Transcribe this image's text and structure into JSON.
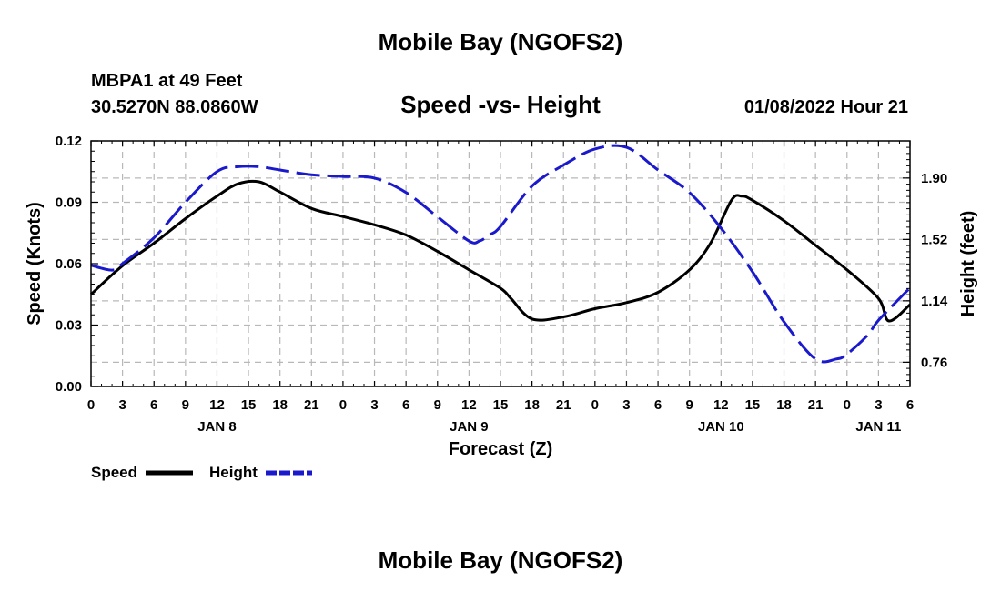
{
  "header": {
    "title": "Mobile Bay (NGOFS2)",
    "station": "MBPA1 at 49 Feet",
    "coords": "30.5270N  88.0860W",
    "subtitle": "Speed -vs- Height",
    "datetime": "01/08/2022 Hour 21"
  },
  "footer": {
    "title": "Mobile Bay (NGOFS2)"
  },
  "legend": {
    "speed": "Speed",
    "height": "Height"
  },
  "colors": {
    "speed": "#000000",
    "height": "#1a1acc"
  },
  "chart_data": {
    "type": "line",
    "title": "Speed -vs- Height",
    "xlabel": "Forecast (Z)",
    "ylabel": "Speed (Knots)",
    "y2label": "Height (feet)",
    "xlim": [
      0,
      78
    ],
    "ylim": [
      0,
      0.12
    ],
    "y2lim": [
      0.61,
      2.13
    ],
    "x_ticks": [
      0,
      3,
      6,
      9,
      12,
      15,
      18,
      21,
      24,
      27,
      30,
      33,
      36,
      39,
      42,
      45,
      48,
      51,
      54,
      57,
      60,
      63,
      66,
      69,
      72,
      75,
      78
    ],
    "x_tick_labels": [
      "0",
      "3",
      "6",
      "9",
      "12",
      "15",
      "18",
      "21",
      "0",
      "3",
      "6",
      "9",
      "12",
      "15",
      "18",
      "21",
      "0",
      "3",
      "6",
      "9",
      "12",
      "15",
      "18",
      "21",
      "0",
      "3",
      "6"
    ],
    "date_labels": [
      {
        "x": 12,
        "label": "JAN 8"
      },
      {
        "x": 36,
        "label": "JAN 9"
      },
      {
        "x": 60,
        "label": "JAN 10"
      },
      {
        "x": 75,
        "label": "JAN 11"
      }
    ],
    "y_ticks": [
      0,
      0.03,
      0.06,
      0.09,
      0.12
    ],
    "y_tick_labels": [
      "0.00",
      "0.03",
      "0.06",
      "0.09",
      "0.12"
    ],
    "y2_ticks": [
      0.76,
      1.14,
      1.52,
      1.9
    ],
    "y2_tick_labels": [
      "0.76",
      "1.14",
      "1.52",
      "1.90"
    ],
    "series": [
      {
        "name": "Speed",
        "axis": "left",
        "x": [
          0,
          3,
          6,
          9,
          12,
          14,
          16,
          18,
          21,
          24,
          27,
          30,
          33,
          36,
          39,
          40,
          42,
          45,
          48,
          51,
          54,
          57,
          59,
          61,
          62,
          63,
          66,
          69,
          72,
          75,
          76,
          78
        ],
        "y": [
          0.045,
          0.059,
          0.07,
          0.082,
          0.093,
          0.099,
          0.1,
          0.095,
          0.087,
          0.083,
          0.079,
          0.074,
          0.066,
          0.057,
          0.048,
          0.043,
          0.033,
          0.034,
          0.038,
          0.041,
          0.046,
          0.057,
          0.07,
          0.091,
          0.093,
          0.091,
          0.081,
          0.069,
          0.057,
          0.043,
          0.032,
          0.04
        ]
      },
      {
        "name": "Height",
        "axis": "right",
        "x": [
          0,
          2,
          3,
          6,
          9,
          12,
          14,
          16,
          18,
          21,
          24,
          27,
          30,
          33,
          36,
          37,
          38,
          39,
          42,
          45,
          48,
          51,
          54,
          57,
          60,
          63,
          66,
          69,
          71,
          72,
          74,
          75,
          78
        ],
        "y": [
          1.36,
          1.33,
          1.37,
          1.53,
          1.75,
          1.94,
          1.97,
          1.97,
          1.95,
          1.92,
          1.91,
          1.9,
          1.81,
          1.66,
          1.51,
          1.51,
          1.55,
          1.6,
          1.85,
          1.98,
          2.08,
          2.09,
          1.95,
          1.81,
          1.59,
          1.32,
          1.01,
          0.78,
          0.78,
          0.81,
          0.93,
          1.02,
          1.22
        ]
      }
    ]
  }
}
